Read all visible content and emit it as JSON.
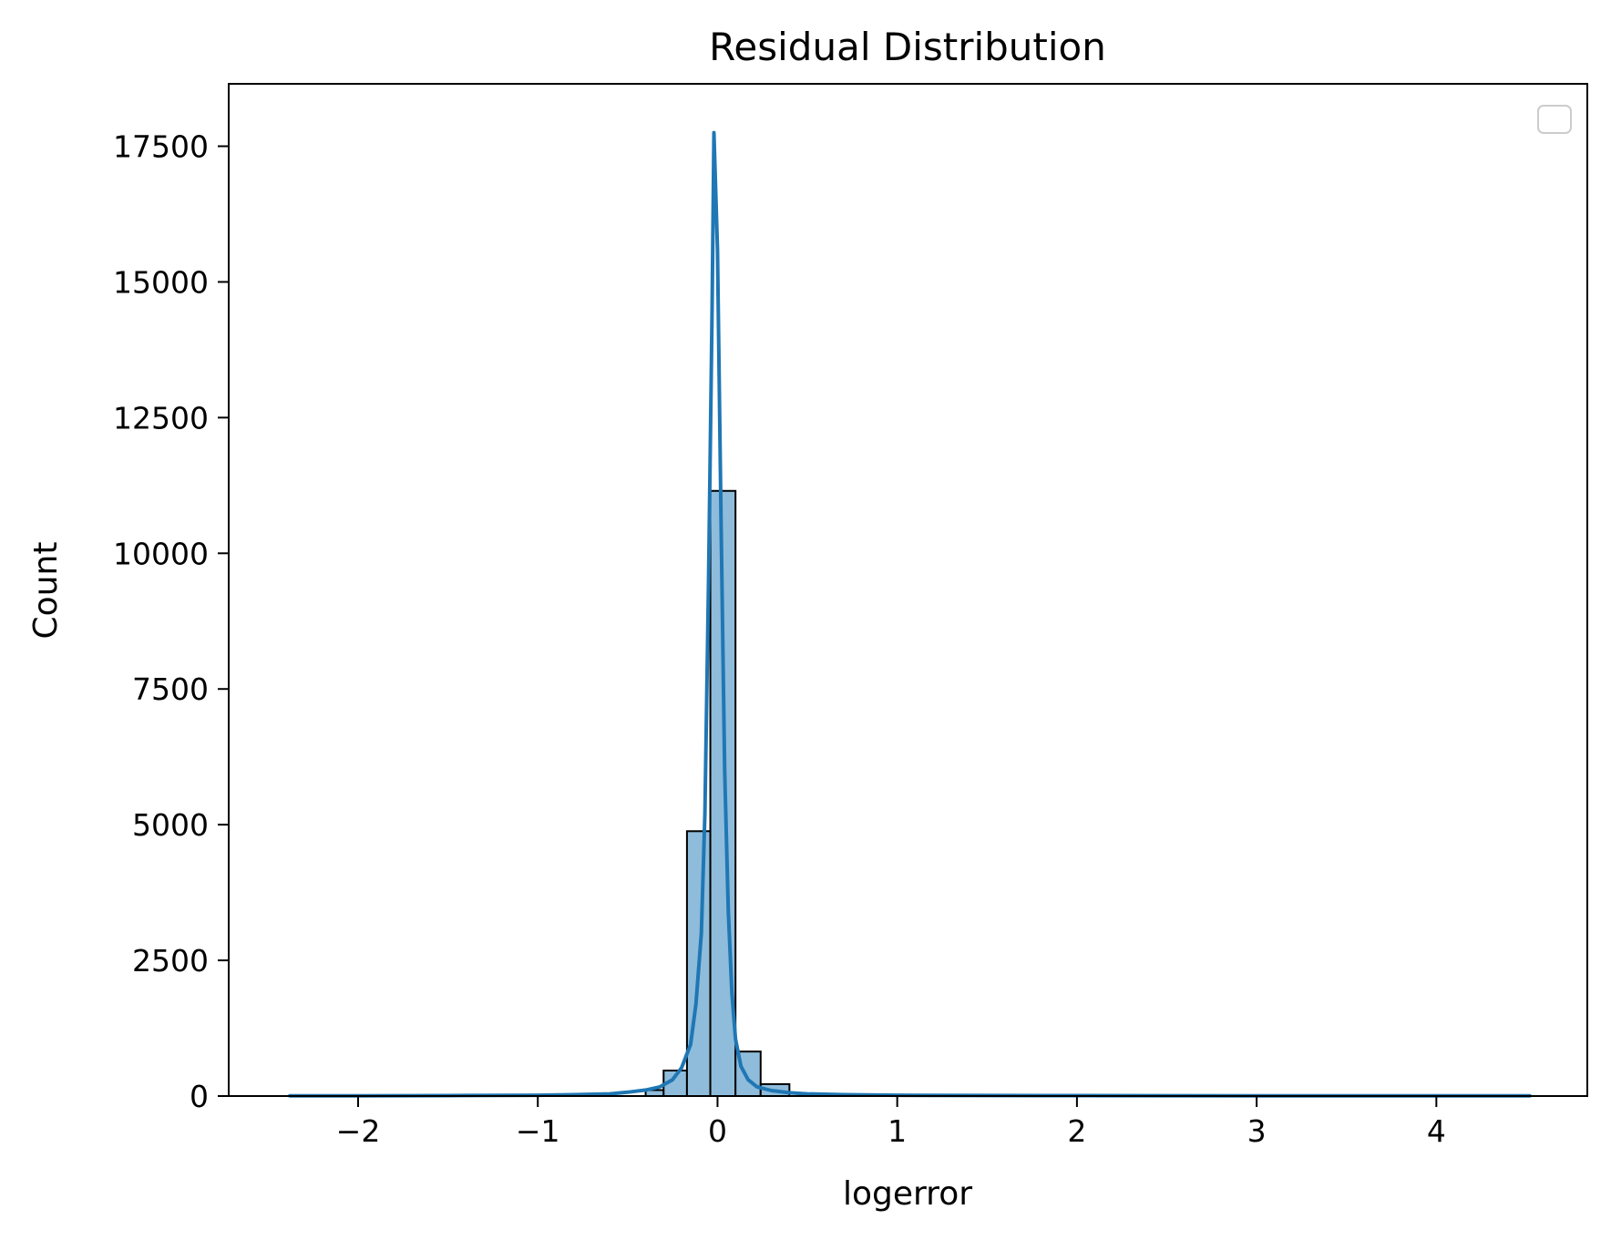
{
  "chart_data": {
    "type": "bar",
    "title": "Residual Distribution",
    "xlabel": "logerror",
    "ylabel": "Count",
    "xlim": [
      -2.72,
      4.84
    ],
    "ylim": [
      0,
      18650
    ],
    "x_ticks": [
      -2,
      -1,
      0,
      1,
      2,
      3,
      4
    ],
    "x_tick_labels": [
      "−2",
      "−1",
      "0",
      "1",
      "2",
      "3",
      "4"
    ],
    "y_ticks": [
      0,
      2500,
      5000,
      7500,
      10000,
      12500,
      15000,
      17500
    ],
    "y_tick_labels": [
      "0",
      "2500",
      "5000",
      "7500",
      "10000",
      "12500",
      "15000",
      "17500"
    ],
    "grid": false,
    "legend": {
      "placement": "top-right",
      "entries": []
    },
    "colors": {
      "bar_fill": "#8fbcdb",
      "bar_edge": "#000000",
      "kde_line": "#1f77b4"
    },
    "histogram": {
      "bin_edges": [
        -0.4,
        -0.3,
        -0.17,
        -0.04,
        0.1,
        0.24,
        0.4
      ],
      "counts": [
        110,
        470,
        4880,
        11150,
        820,
        220
      ]
    },
    "kde": {
      "x": [
        -2.38,
        -2.0,
        -1.5,
        -1.0,
        -0.8,
        -0.6,
        -0.5,
        -0.4,
        -0.32,
        -0.25,
        -0.2,
        -0.15,
        -0.12,
        -0.09,
        -0.07,
        -0.05,
        -0.03,
        -0.02,
        0.0,
        0.02,
        0.04,
        0.06,
        0.08,
        0.1,
        0.13,
        0.17,
        0.22,
        0.3,
        0.4,
        0.5,
        0.7,
        1.0,
        1.5,
        2.0,
        3.0,
        4.0,
        4.52
      ],
      "y": [
        5,
        5,
        8,
        15,
        25,
        40,
        70,
        110,
        170,
        300,
        520,
        950,
        1700,
        3000,
        5200,
        9500,
        14500,
        17750,
        15600,
        10500,
        6000,
        3400,
        1900,
        1050,
        550,
        300,
        170,
        100,
        60,
        40,
        25,
        15,
        10,
        8,
        5,
        5,
        5
      ]
    }
  }
}
